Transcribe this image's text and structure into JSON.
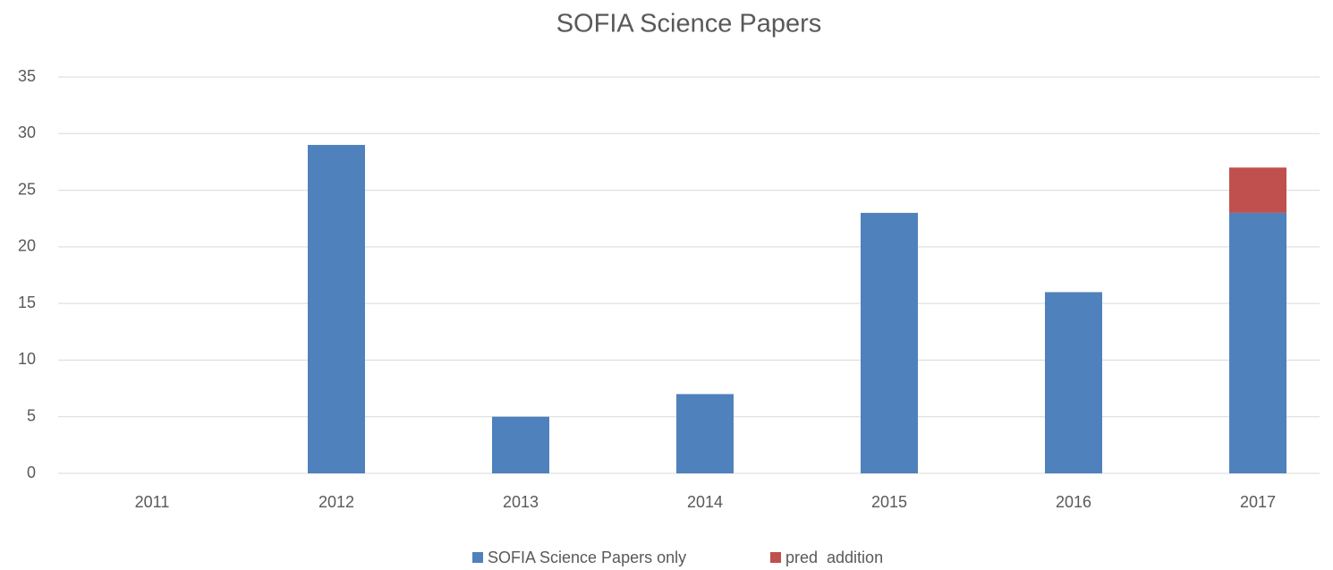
{
  "chart_data": {
    "type": "bar",
    "stacked": true,
    "title": "SOFIA Science Papers",
    "categories": [
      "2011",
      "2012",
      "2013",
      "2014",
      "2015",
      "2016",
      "2017"
    ],
    "series": [
      {
        "name": "SOFIA Science Papers only",
        "color": "#4f81bd",
        "values": [
          0,
          29,
          5,
          7,
          23,
          16,
          23
        ]
      },
      {
        "name": "pred  addition",
        "color": "#c0504d",
        "values": [
          0,
          0,
          0,
          0,
          0,
          0,
          4
        ]
      }
    ],
    "ylim": [
      0,
      35
    ],
    "yticks": [
      0,
      5,
      10,
      15,
      20,
      25,
      30,
      35
    ],
    "grid": true,
    "legend": "bottom"
  }
}
